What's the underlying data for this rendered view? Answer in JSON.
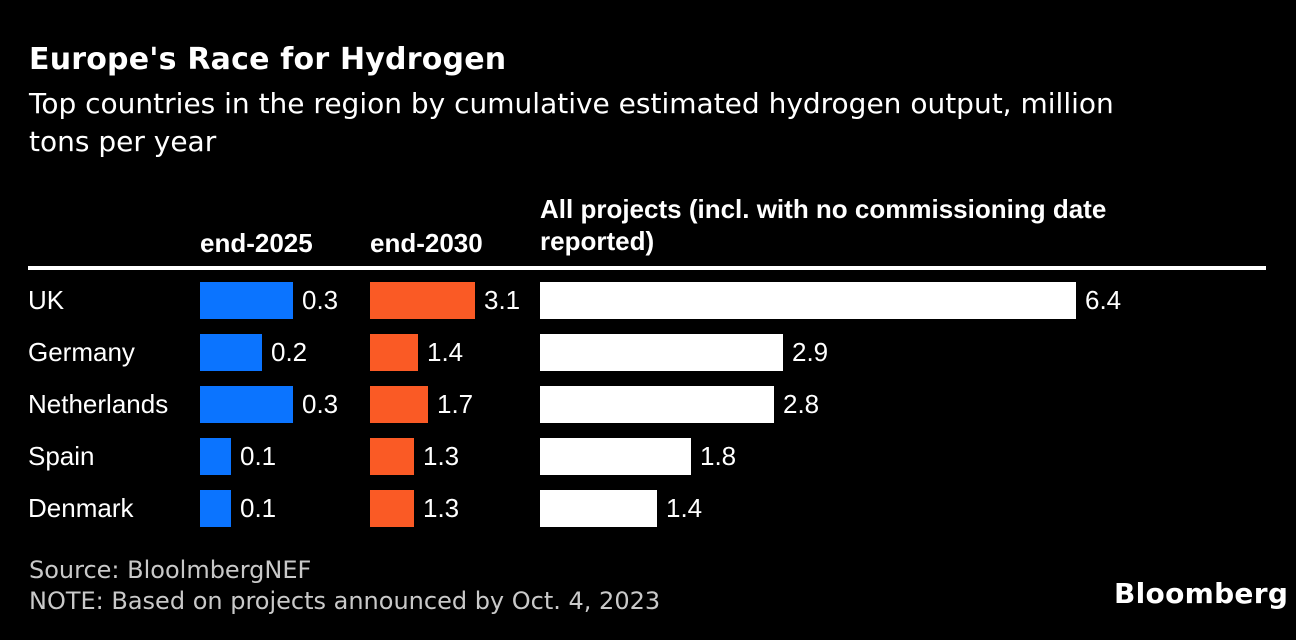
{
  "header": {
    "title": "Europe's Race for Hydrogen",
    "subtitle": "Top countries in the region by cumulative estimated hydrogen output, million\ntons per year"
  },
  "columns": {
    "col4_header": "All projects (incl. with no commissioning date\nreported)"
  },
  "chart_data": {
    "type": "bar",
    "orientation": "horizontal",
    "title": "Europe's Race for Hydrogen",
    "subtitle": "Top countries in the region by cumulative estimated hydrogen output, million tons per year",
    "unit": "million tons per year",
    "grid": false,
    "legend_position": "column-headers",
    "categories": [
      "UK",
      "Germany",
      "Netherlands",
      "Spain",
      "Denmark"
    ],
    "series": [
      {
        "key": "end-2025",
        "name": "end-2025",
        "color": "#0b74ff",
        "values": [
          0.3,
          0.2,
          0.3,
          0.1,
          0.1
        ]
      },
      {
        "key": "end-2030",
        "name": "end-2030",
        "color": "#fa5a25",
        "values": [
          3.1,
          1.4,
          1.7,
          1.3,
          1.3
        ]
      },
      {
        "key": "all-projects",
        "name": "All projects (incl. with no commissioning date reported)",
        "color": "#ffffff",
        "values": [
          6.4,
          2.9,
          2.8,
          1.8,
          1.4
        ]
      }
    ]
  },
  "footer": {
    "source": "Source: BloolmbergNEF",
    "note": "NOTE: Based on projects announced by Oct. 4, 2023",
    "brand": "Bloomberg"
  }
}
